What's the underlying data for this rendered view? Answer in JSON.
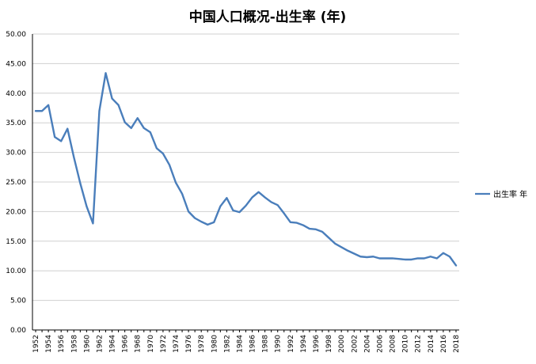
{
  "chart_data": {
    "type": "line",
    "title": "中国人口概况-出生率 (年)",
    "xlabel": "",
    "ylabel": "",
    "ylim": [
      0,
      50
    ],
    "y_tick_step": 5,
    "y_tick_labels": [
      "0.00",
      "5.00",
      "10.00",
      "15.00",
      "20.00",
      "25.00",
      "30.00",
      "35.00",
      "40.00",
      "45.00",
      "50.00"
    ],
    "x_tick_labels": [
      "1952",
      "1954",
      "1956",
      "1958",
      "1960",
      "1962",
      "1964",
      "1966",
      "1968",
      "1970",
      "1972",
      "1974",
      "1976",
      "1978",
      "1980",
      "1982",
      "1984",
      "1986",
      "1988",
      "1990",
      "1992",
      "1994",
      "1996",
      "1998",
      "2000",
      "2002",
      "2004",
      "2006",
      "2008",
      "2010",
      "2012",
      "2014",
      "2016",
      "2018"
    ],
    "grid": "horizontal",
    "legend_position": "right",
    "color": "#4a7ebb",
    "series": [
      {
        "name": "出生率 年",
        "x": [
          1952,
          1953,
          1954,
          1955,
          1956,
          1957,
          1958,
          1959,
          1960,
          1961,
          1962,
          1963,
          1964,
          1965,
          1966,
          1967,
          1968,
          1969,
          1970,
          1971,
          1972,
          1973,
          1974,
          1975,
          1976,
          1977,
          1978,
          1979,
          1980,
          1981,
          1982,
          1983,
          1984,
          1985,
          1986,
          1987,
          1988,
          1989,
          1990,
          1991,
          1992,
          1993,
          1994,
          1995,
          1996,
          1997,
          1998,
          1999,
          2000,
          2001,
          2002,
          2003,
          2004,
          2005,
          2006,
          2007,
          2008,
          2009,
          2010,
          2011,
          2012,
          2013,
          2014,
          2015,
          2016,
          2017,
          2018
        ],
        "values": [
          37.0,
          37.0,
          38.0,
          32.6,
          31.9,
          34.0,
          29.2,
          24.8,
          20.9,
          18.0,
          37.0,
          43.4,
          39.1,
          38.0,
          35.1,
          34.1,
          35.8,
          34.1,
          33.4,
          30.7,
          29.8,
          27.9,
          24.9,
          23.0,
          20.0,
          18.9,
          18.3,
          17.8,
          18.2,
          20.9,
          22.3,
          20.2,
          19.9,
          21.0,
          22.4,
          23.3,
          22.4,
          21.6,
          21.1,
          19.7,
          18.2,
          18.1,
          17.7,
          17.1,
          17.0,
          16.6,
          15.6,
          14.6,
          14.0,
          13.4,
          12.9,
          12.4,
          12.3,
          12.4,
          12.1,
          12.1,
          12.1,
          12.0,
          11.9,
          11.9,
          12.1,
          12.1,
          12.4,
          12.1,
          13.0,
          12.4,
          10.9
        ]
      }
    ]
  }
}
